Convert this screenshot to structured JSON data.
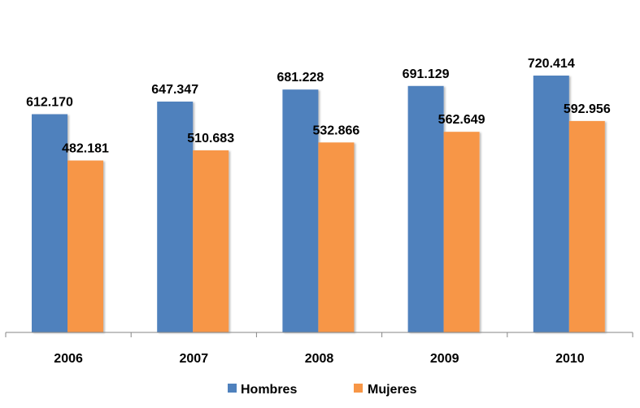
{
  "chart_data": {
    "type": "bar",
    "categories": [
      "2006",
      "2007",
      "2008",
      "2009",
      "2010"
    ],
    "series": [
      {
        "name": "Hombres",
        "values": [
          612170,
          647347,
          681228,
          691129,
          720414
        ],
        "labels": [
          "612.170",
          "647.347",
          "681.228",
          "691.129",
          "720.414"
        ],
        "color": "#4F81BD"
      },
      {
        "name": "Mujeres",
        "values": [
          482181,
          510683,
          532866,
          562649,
          592956
        ],
        "labels": [
          "482.181",
          "510.683",
          "532.866",
          "562.649",
          "592.956"
        ],
        "color": "#F79646"
      }
    ],
    "title": "",
    "xlabel": "",
    "ylabel": "",
    "ylim": [
      0,
      750000
    ],
    "grid": false,
    "legend": "bottom"
  }
}
